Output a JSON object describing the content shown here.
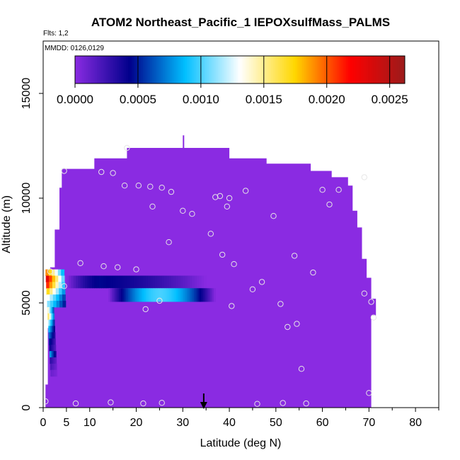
{
  "chart_data": {
    "type": "heatmap",
    "title": "ATOM2 Northeast_Pacific_1 IEPOXsulfMass_PALMS",
    "flights_label": "Flts: 1,2",
    "mmdd_label": "MMDD: 0126,0129",
    "xlabel": "Latitude (deg N)",
    "ylabel": "Altitude (m)",
    "xlim": [
      0,
      85
    ],
    "ylim": [
      0,
      17500
    ],
    "x_ticks": [
      0,
      5,
      10,
      20,
      30,
      40,
      50,
      60,
      70,
      80
    ],
    "x_tick_labels": [
      "0",
      "5",
      "10",
      "20",
      "30",
      "40",
      "50",
      "60",
      "70",
      "80"
    ],
    "y_ticks": [
      0,
      5000,
      10000,
      15000
    ],
    "y_tick_labels": [
      "0",
      "5000",
      "10000",
      "15000"
    ],
    "colorbar": {
      "min": 0,
      "max": 0.00262,
      "ticks": [
        0,
        0.0005,
        0.001,
        0.0015,
        0.002,
        0.0025
      ],
      "tick_labels": [
        "0.0000",
        "0.0005",
        "0.0010",
        "0.0015",
        "0.0020",
        "0.0025"
      ],
      "colors": [
        "#8a2be2",
        "#00008b",
        "#00bfff",
        "#ffffff",
        "#ffd700",
        "#ff0000",
        "#9b1b1b"
      ]
    },
    "background_value_color": "#8a2be2",
    "marker_latitude": 34.5,
    "plume": [
      {
        "lat0": 5,
        "lat1": 35,
        "alt0": 5700,
        "alt1": 6300,
        "peak_lat": 12,
        "peak_value": 0.0003
      },
      {
        "lat0": 14,
        "lat1": 37,
        "alt0": 5050,
        "alt1": 5700,
        "peak_lat": 25,
        "peak_value": 0.00085
      }
    ],
    "profile_column": [
      {
        "alt": 6300,
        "value": 0.0019
      },
      {
        "alt": 6000,
        "value": 0.0023
      },
      {
        "alt": 5700,
        "value": 0.0021
      },
      {
        "alt": 5400,
        "value": 0.0017
      },
      {
        "alt": 5100,
        "value": 0.0013
      },
      {
        "alt": 4800,
        "value": 0.0011
      },
      {
        "alt": 4500,
        "value": 0.0014
      },
      {
        "alt": 4200,
        "value": 0.0016
      },
      {
        "alt": 3900,
        "value": 0.0012
      },
      {
        "alt": 3600,
        "value": 0.0009
      },
      {
        "alt": 3300,
        "value": 0.0007
      },
      {
        "alt": 3000,
        "value": 0.0005
      },
      {
        "alt": 2700,
        "value": 0.0004
      },
      {
        "alt": 2400,
        "value": 0.0008
      },
      {
        "alt": 2100,
        "value": 0.0003
      },
      {
        "alt": 1800,
        "value": 0.0002
      },
      {
        "alt": 1500,
        "value": 0.0001
      }
    ],
    "sample_points": [
      {
        "lat": 0.5,
        "alt": 300
      },
      {
        "lat": 7,
        "alt": 200
      },
      {
        "lat": 14.5,
        "alt": 250
      },
      {
        "lat": 21.5,
        "alt": 200
      },
      {
        "lat": 25.5,
        "alt": 230
      },
      {
        "lat": 46,
        "alt": 180
      },
      {
        "lat": 51.5,
        "alt": 220
      },
      {
        "lat": 56.5,
        "alt": 200
      },
      {
        "lat": 70,
        "alt": 700
      },
      {
        "lat": 55.5,
        "alt": 1850
      },
      {
        "lat": 52.5,
        "alt": 3850
      },
      {
        "lat": 54.5,
        "alt": 4000
      },
      {
        "lat": 71,
        "alt": 4300
      },
      {
        "lat": 51,
        "alt": 4950
      },
      {
        "lat": 70.5,
        "alt": 5050
      },
      {
        "lat": 69,
        "alt": 5450
      },
      {
        "lat": 40.5,
        "alt": 4850
      },
      {
        "lat": 22,
        "alt": 4700
      },
      {
        "lat": 25,
        "alt": 5100
      },
      {
        "lat": 4.5,
        "alt": 5800
      },
      {
        "lat": 45,
        "alt": 5650
      },
      {
        "lat": 47,
        "alt": 6000
      },
      {
        "lat": 1.5,
        "alt": 6500
      },
      {
        "lat": 8,
        "alt": 6900
      },
      {
        "lat": 13,
        "alt": 6750
      },
      {
        "lat": 16,
        "alt": 6700
      },
      {
        "lat": 20,
        "alt": 6600
      },
      {
        "lat": 41,
        "alt": 6850
      },
      {
        "lat": 58,
        "alt": 6450
      },
      {
        "lat": 54,
        "alt": 7250
      },
      {
        "lat": 38.5,
        "alt": 7300
      },
      {
        "lat": 27,
        "alt": 7900
      },
      {
        "lat": 36,
        "alt": 8300
      },
      {
        "lat": 49.5,
        "alt": 9150
      },
      {
        "lat": 30,
        "alt": 9400
      },
      {
        "lat": 32,
        "alt": 9250
      },
      {
        "lat": 23.5,
        "alt": 9600
      },
      {
        "lat": 39.5,
        "alt": 9600
      },
      {
        "lat": 61.5,
        "alt": 9700
      },
      {
        "lat": 37,
        "alt": 10050
      },
      {
        "lat": 38,
        "alt": 10100
      },
      {
        "lat": 40,
        "alt": 10000
      },
      {
        "lat": 43.5,
        "alt": 10350
      },
      {
        "lat": 60,
        "alt": 10400
      },
      {
        "lat": 63.5,
        "alt": 10400
      },
      {
        "lat": 17.5,
        "alt": 10600
      },
      {
        "lat": 20.5,
        "alt": 10600
      },
      {
        "lat": 23,
        "alt": 10550
      },
      {
        "lat": 25.5,
        "alt": 10500
      },
      {
        "lat": 27.5,
        "alt": 10300
      },
      {
        "lat": 4.5,
        "alt": 11300
      },
      {
        "lat": 12.5,
        "alt": 11250
      },
      {
        "lat": 15,
        "alt": 11200
      },
      {
        "lat": 69,
        "alt": 11000
      },
      {
        "lat": 18,
        "alt": 12400
      }
    ]
  }
}
